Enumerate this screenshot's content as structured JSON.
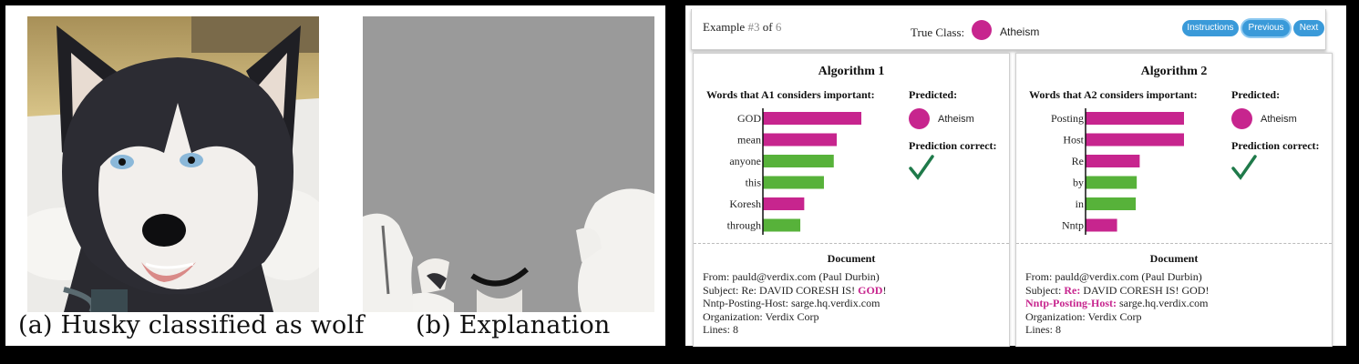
{
  "captions": {
    "a": "(a) Husky classified as wolf",
    "b": "(b) Explanation"
  },
  "header": {
    "example_prefix": "Example ",
    "example_number": "#3",
    "example_of": " of ",
    "example_total": "6",
    "true_class_label": "True Class:",
    "true_class_value": "Atheism",
    "buttons": {
      "instructions": "Instructions",
      "previous": "Previous",
      "next": "Next"
    }
  },
  "colors": {
    "magenta": "#c7258e",
    "green": "#57b23a",
    "button_blue": "#3a9ad9",
    "check_green": "#1f7a4a"
  },
  "algorithms": [
    {
      "title": "Algorithm 1",
      "words_label": "Words that A1 considers important:",
      "predicted_label": "Predicted:",
      "predicted_value": "Atheism",
      "correct_label": "Prediction correct:",
      "document_title": "Document",
      "document_lines": [
        [
          {
            "t": "From: pauld@verdix.com (Paul Durbin)"
          }
        ],
        [
          {
            "t": "Subject: Re: DAVID CORESH IS! "
          },
          {
            "t": "GOD",
            "hl": true
          },
          {
            "t": "!"
          }
        ],
        [
          {
            "t": "Nntp-Posting-Host: sarge.hq.verdix.com"
          }
        ],
        [
          {
            "t": "Organization: Verdix Corp"
          }
        ],
        [
          {
            "t": "Lines: 8"
          }
        ]
      ]
    },
    {
      "title": "Algorithm 2",
      "words_label": "Words that A2 considers important:",
      "predicted_label": "Predicted:",
      "predicted_value": "Atheism",
      "correct_label": "Prediction correct:",
      "document_title": "Document",
      "document_lines": [
        [
          {
            "t": "From: pauld@verdix.com (Paul Durbin)"
          }
        ],
        [
          {
            "t": "Subject: "
          },
          {
            "t": "Re:",
            "hl": true
          },
          {
            "t": " DAVID CORESH IS! GOD!"
          }
        ],
        [
          {
            "t": "Nntp-Posting-Host:",
            "hl": true
          },
          {
            "t": " sarge.hq.verdix.com"
          }
        ],
        [
          {
            "t": "Organization: Verdix Corp"
          }
        ],
        [
          {
            "t": "Lines: 8"
          }
        ]
      ]
    }
  ],
  "chart_data": [
    {
      "type": "bar",
      "orientation": "horizontal",
      "categories": [
        "GOD",
        "mean",
        "anyone",
        "this",
        "Koresh",
        "through"
      ],
      "values": [
        1.0,
        0.75,
        0.72,
        0.62,
        0.42,
        0.38
      ],
      "colors": [
        "magenta",
        "magenta",
        "green",
        "green",
        "magenta",
        "green"
      ],
      "xlim": [
        0,
        1
      ],
      "grid": false
    },
    {
      "type": "bar",
      "orientation": "horizontal",
      "categories": [
        "Posting",
        "Host",
        "Re",
        "by",
        "in",
        "Nntp"
      ],
      "values": [
        1.0,
        1.0,
        0.55,
        0.52,
        0.51,
        0.32
      ],
      "colors": [
        "magenta",
        "magenta",
        "magenta",
        "green",
        "green",
        "magenta"
      ],
      "xlim": [
        0,
        1
      ],
      "grid": false
    }
  ]
}
